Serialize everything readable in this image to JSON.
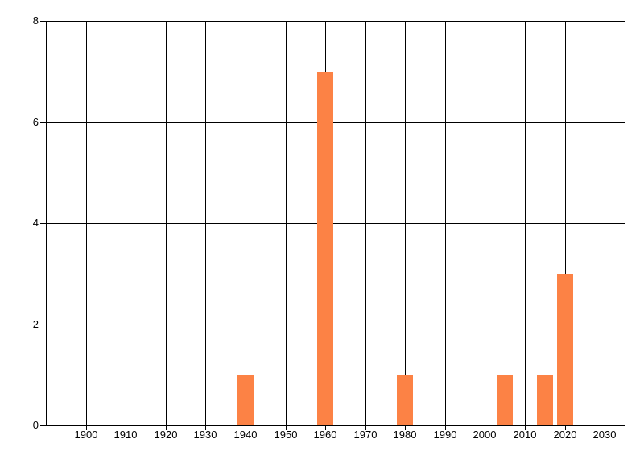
{
  "chart_data": {
    "type": "bar",
    "title": "",
    "xlabel": "",
    "ylabel": "",
    "x": [
      1940,
      1960,
      1980,
      2005,
      2015,
      2020
    ],
    "values": [
      1,
      7,
      1,
      1,
      1,
      3
    ],
    "bar_width_years": 4,
    "bar_color": "#fc8245",
    "x_ticks": [
      1900,
      1910,
      1920,
      1930,
      1940,
      1950,
      1960,
      1970,
      1980,
      1990,
      2000,
      2010,
      2020,
      2030
    ],
    "y_ticks": [
      0,
      2,
      4,
      6,
      8
    ],
    "xlim": [
      1890,
      2035
    ],
    "ylim": [
      0,
      8
    ],
    "grid": true,
    "grid_color": "#000000",
    "text_color": "#000000",
    "background_color": "#ffffff",
    "legend": null
  }
}
